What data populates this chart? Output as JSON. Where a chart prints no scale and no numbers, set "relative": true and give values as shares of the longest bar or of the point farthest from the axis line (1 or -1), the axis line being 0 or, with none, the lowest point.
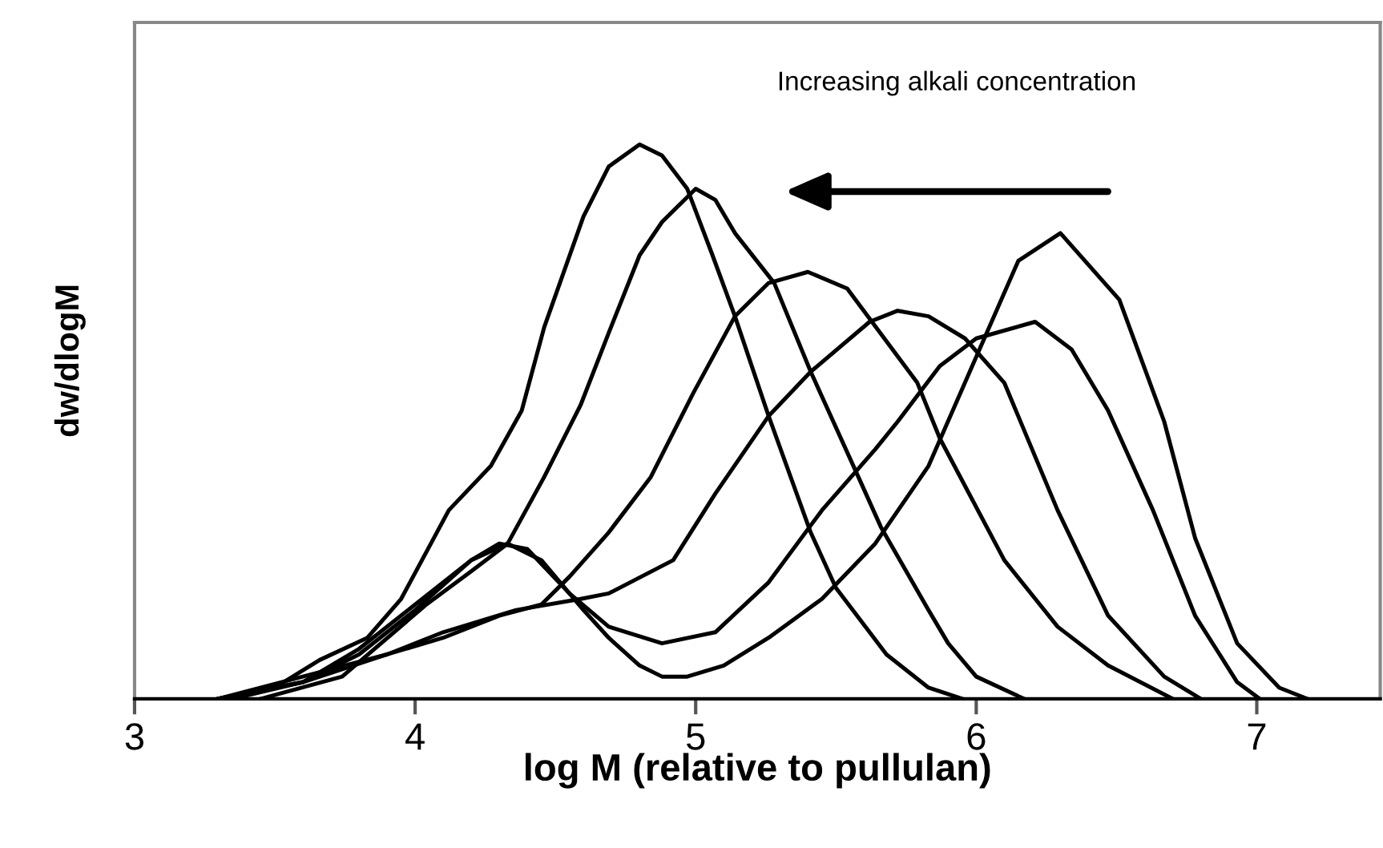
{
  "chart_data": {
    "type": "line",
    "relative": true,
    "xlabel": "log M (relative to pullulan)",
    "ylabel": "dw/dlogM",
    "xlim": [
      3,
      7.44
    ],
    "xticks": [
      3,
      4,
      5,
      6,
      7
    ],
    "grid": false,
    "marker": "none",
    "line_style": "solid",
    "tick_labels": "x",
    "annotations": [
      "Increasing alkali concentration"
    ],
    "series": [
      {
        "color": "#000000",
        "x": [
          3.3,
          3.5,
          3.66,
          3.83,
          3.95,
          4.12,
          4.27,
          4.38,
          4.46,
          4.6,
          4.69,
          4.8,
          4.88,
          4.97,
          5.06,
          5.14,
          5.26,
          5.41,
          5.5,
          5.68,
          5.83,
          5.95
        ],
        "values": [
          0,
          0.02,
          0.07,
          0.11,
          0.18,
          0.34,
          0.42,
          0.52,
          0.67,
          0.87,
          0.96,
          1.0,
          0.98,
          0.92,
          0.8,
          0.69,
          0.51,
          0.3,
          0.2,
          0.08,
          0.02,
          0
        ]
      },
      {
        "color": "#000000",
        "x": [
          3.45,
          3.74,
          4.04,
          4.2,
          4.33,
          4.46,
          4.59,
          4.69,
          4.8,
          4.88,
          5.0,
          5.07,
          5.14,
          5.28,
          5.41,
          5.58,
          5.66,
          5.83,
          5.9,
          6.0,
          6.17
        ],
        "values": [
          0,
          0.04,
          0.17,
          0.23,
          0.28,
          0.4,
          0.53,
          0.66,
          0.8,
          0.86,
          0.92,
          0.9,
          0.84,
          0.75,
          0.59,
          0.4,
          0.31,
          0.16,
          0.1,
          0.04,
          0
        ]
      },
      {
        "color": "#000000",
        "x": [
          3.3,
          3.6,
          3.9,
          4.1,
          4.3,
          4.45,
          4.55,
          4.69,
          4.84,
          4.99,
          5.14,
          5.26,
          5.4,
          5.54,
          5.79,
          5.87,
          6.1,
          6.29,
          6.47,
          6.7
        ],
        "values": [
          0,
          0.03,
          0.08,
          0.11,
          0.15,
          0.17,
          0.22,
          0.3,
          0.4,
          0.55,
          0.69,
          0.75,
          0.77,
          0.74,
          0.57,
          0.47,
          0.25,
          0.13,
          0.06,
          0
        ]
      },
      {
        "color": "#000000",
        "x": [
          3.3,
          3.6,
          3.9,
          4.1,
          4.36,
          4.59,
          4.69,
          4.92,
          5.07,
          5.26,
          5.41,
          5.62,
          5.72,
          5.83,
          5.96,
          6.1,
          6.29,
          6.47,
          6.67,
          6.8
        ],
        "values": [
          0,
          0.04,
          0.08,
          0.12,
          0.16,
          0.18,
          0.19,
          0.25,
          0.37,
          0.51,
          0.59,
          0.68,
          0.7,
          0.69,
          0.65,
          0.57,
          0.34,
          0.15,
          0.04,
          0
        ]
      },
      {
        "color": "#000000",
        "x": [
          3.35,
          3.6,
          3.8,
          4.0,
          4.2,
          4.33,
          4.45,
          4.6,
          4.69,
          4.8,
          4.88,
          4.97,
          5.1,
          5.26,
          5.45,
          5.64,
          5.83,
          6.02,
          6.15,
          6.3,
          6.51,
          6.67,
          6.78,
          6.93,
          7.08,
          7.18
        ],
        "values": [
          0,
          0.03,
          0.08,
          0.16,
          0.25,
          0.28,
          0.25,
          0.16,
          0.11,
          0.06,
          0.04,
          0.04,
          0.06,
          0.11,
          0.18,
          0.28,
          0.42,
          0.64,
          0.79,
          0.84,
          0.72,
          0.5,
          0.29,
          0.1,
          0.02,
          0
        ]
      },
      {
        "color": "#000000",
        "x": [
          3.3,
          3.6,
          3.8,
          4.0,
          4.2,
          4.3,
          4.4,
          4.55,
          4.69,
          4.88,
          5.07,
          5.26,
          5.45,
          5.64,
          5.72,
          5.87,
          6.0,
          6.21,
          6.34,
          6.47,
          6.63,
          6.78,
          6.93,
          7.01
        ],
        "values": [
          0,
          0.03,
          0.09,
          0.17,
          0.25,
          0.28,
          0.27,
          0.19,
          0.13,
          0.1,
          0.12,
          0.21,
          0.34,
          0.45,
          0.5,
          0.6,
          0.65,
          0.68,
          0.63,
          0.52,
          0.34,
          0.15,
          0.03,
          0
        ]
      }
    ]
  }
}
